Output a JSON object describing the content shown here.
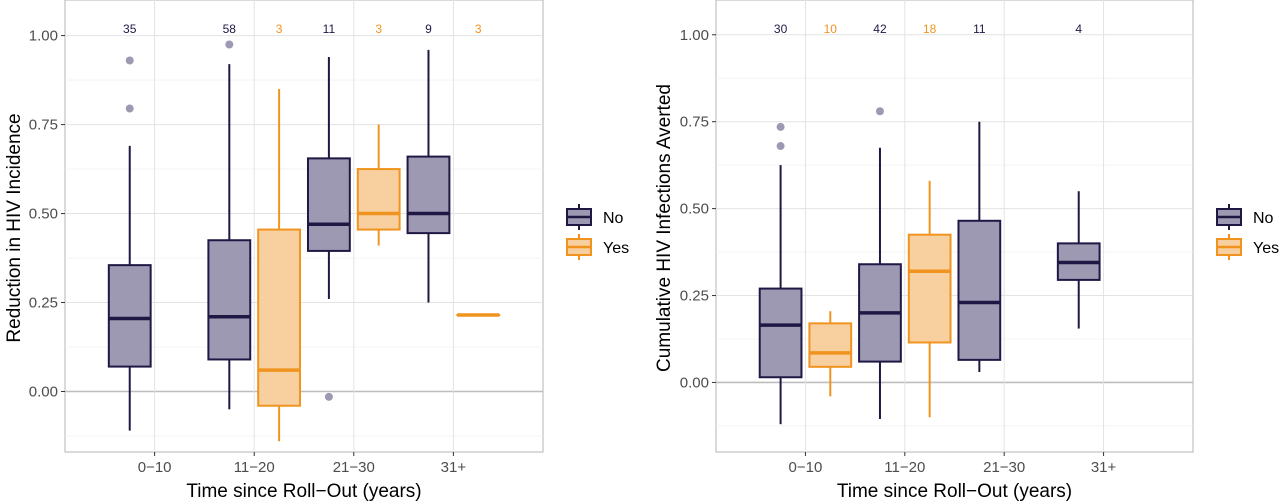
{
  "chart_data": [
    {
      "type": "box",
      "xlabel": "Time since Roll−Out (years)",
      "ylabel": "Reduction in HIV Incidence",
      "categories": [
        "0−10",
        "11−20",
        "21−30",
        "31+"
      ],
      "ylim": [
        -0.17,
        1.1
      ],
      "yticks": [
        0.0,
        0.25,
        0.5,
        0.75,
        1.0
      ],
      "ytick_labels": [
        "0.00",
        "0.25",
        "0.50",
        "0.75",
        "1.00"
      ],
      "grid": true,
      "legend": {
        "position": "right",
        "entries": [
          "No",
          "Yes"
        ]
      },
      "series": [
        {
          "name": "No",
          "color": "#1f1845",
          "fill": "#9e99b3",
          "boxes": [
            {
              "category": "0−10",
              "count": "35",
              "whisker_low": -0.11,
              "q1": 0.07,
              "median": 0.205,
              "q3": 0.355,
              "whisker_high": 0.69,
              "outliers": [
                0.795,
                0.93
              ]
            },
            {
              "category": "11−20",
              "count": "58",
              "whisker_low": -0.05,
              "q1": 0.09,
              "median": 0.21,
              "q3": 0.425,
              "whisker_high": 0.92,
              "outliers": [
                0.975
              ]
            },
            {
              "category": "21−30",
              "count": "11",
              "whisker_low": 0.26,
              "q1": 0.395,
              "median": 0.47,
              "q3": 0.655,
              "whisker_high": 0.94,
              "outliers": [
                -0.015
              ]
            },
            {
              "category": "31+",
              "count": "9",
              "whisker_low": 0.25,
              "q1": 0.445,
              "median": 0.5,
              "q3": 0.66,
              "whisker_high": 0.96,
              "outliers": []
            }
          ]
        },
        {
          "name": "Yes",
          "color": "#f0941f",
          "fill": "#f8cf9e",
          "boxes": [
            {
              "category": "11−20",
              "count": "3",
              "whisker_low": -0.14,
              "q1": -0.04,
              "median": 0.06,
              "q3": 0.455,
              "whisker_high": 0.85,
              "outliers": []
            },
            {
              "category": "21−30",
              "count": "3",
              "whisker_low": 0.41,
              "q1": 0.455,
              "median": 0.5,
              "q3": 0.625,
              "whisker_high": 0.75,
              "outliers": []
            },
            {
              "category": "31+",
              "count": "3",
              "whisker_low": 0.215,
              "q1": 0.215,
              "median": 0.215,
              "q3": 0.215,
              "whisker_high": 0.215,
              "outliers": []
            }
          ]
        }
      ]
    },
    {
      "type": "box",
      "xlabel": "Time since Roll−Out (years)",
      "ylabel": "Cumulative HIV Infections Averted",
      "categories": [
        "0−10",
        "11−20",
        "21−30",
        "31+"
      ],
      "ylim": [
        -0.2,
        1.1
      ],
      "yticks": [
        0.0,
        0.25,
        0.5,
        0.75,
        1.0
      ],
      "ytick_labels": [
        "0.00",
        "0.25",
        "0.50",
        "0.75",
        "1.00"
      ],
      "grid": true,
      "legend": {
        "position": "right",
        "entries": [
          "No",
          "Yes"
        ]
      },
      "series": [
        {
          "name": "No",
          "color": "#1f1845",
          "fill": "#9e99b3",
          "boxes": [
            {
              "category": "0−10",
              "count": "30",
              "whisker_low": -0.12,
              "q1": 0.015,
              "median": 0.165,
              "q3": 0.27,
              "whisker_high": 0.625,
              "outliers": [
                0.68,
                0.735
              ]
            },
            {
              "category": "11−20",
              "count": "42",
              "whisker_low": -0.105,
              "q1": 0.06,
              "median": 0.2,
              "q3": 0.34,
              "whisker_high": 0.675,
              "outliers": [
                0.78
              ]
            },
            {
              "category": "21−30",
              "count": "11",
              "whisker_low": 0.03,
              "q1": 0.065,
              "median": 0.23,
              "q3": 0.465,
              "whisker_high": 0.75,
              "outliers": []
            },
            {
              "category": "31+",
              "count": "4",
              "whisker_low": 0.155,
              "q1": 0.295,
              "median": 0.345,
              "q3": 0.4,
              "whisker_high": 0.55,
              "outliers": []
            }
          ]
        },
        {
          "name": "Yes",
          "color": "#f0941f",
          "fill": "#f8cf9e",
          "boxes": [
            {
              "category": "0−10",
              "count": "10",
              "whisker_low": -0.04,
              "q1": 0.045,
              "median": 0.085,
              "q3": 0.17,
              "whisker_high": 0.205,
              "outliers": []
            },
            {
              "category": "11−20",
              "count": "18",
              "whisker_low": -0.1,
              "q1": 0.115,
              "median": 0.32,
              "q3": 0.425,
              "whisker_high": 0.58,
              "outliers": []
            }
          ]
        }
      ]
    }
  ]
}
